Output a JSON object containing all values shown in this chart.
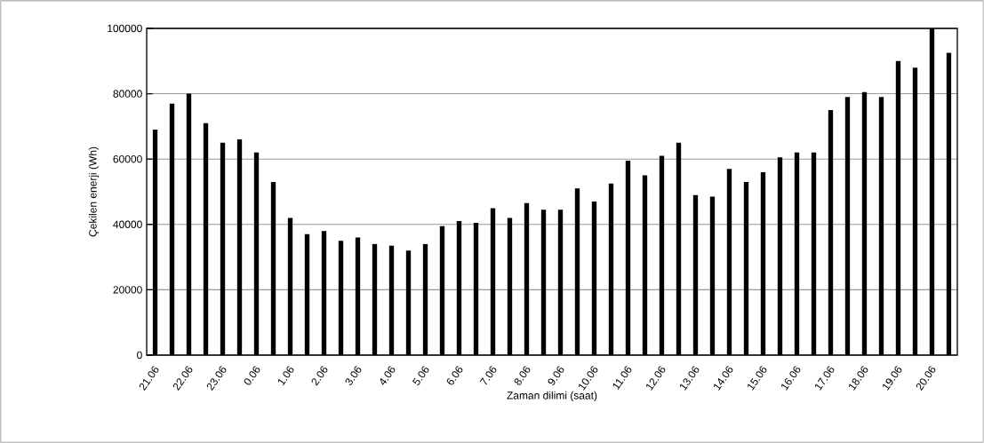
{
  "chart_data": {
    "type": "bar",
    "xlabel": "Zaman dilimi (saat)",
    "ylabel": "Çekilen enerji (Wh)",
    "categories": [
      "21.06",
      null,
      "22.06",
      null,
      "23.06",
      null,
      "0.06",
      null,
      "1.06",
      null,
      "2.06",
      null,
      "3.06",
      null,
      "4.06",
      null,
      "5.06",
      null,
      "6.06",
      null,
      "7.06",
      null,
      "8.06",
      null,
      "9.06",
      null,
      "10.06",
      null,
      "11.06",
      null,
      "12.06",
      null,
      "13.06",
      null,
      "14.06",
      null,
      "15.06",
      null,
      "16.06",
      null,
      "17.06",
      null,
      "18.06",
      null,
      "19.06",
      null,
      "20.06",
      null
    ],
    "values": [
      69000,
      77000,
      80000,
      71000,
      65000,
      66000,
      62000,
      53000,
      42000,
      37000,
      38000,
      35000,
      36000,
      34000,
      33500,
      32000,
      34000,
      39500,
      41000,
      40500,
      45000,
      42000,
      46500,
      44500,
      44500,
      51000,
      47000,
      52500,
      59500,
      55000,
      61000,
      65000,
      49000,
      48500,
      57000,
      53000,
      56000,
      60500,
      62000,
      62000,
      75000,
      79000,
      80500,
      79000,
      90000,
      88000,
      100000,
      92500
    ],
    "color": "#000000",
    "ylim": [
      0,
      100000
    ],
    "yticks": [
      0,
      20000,
      40000,
      60000,
      80000,
      100000
    ],
    "grid": "y"
  }
}
